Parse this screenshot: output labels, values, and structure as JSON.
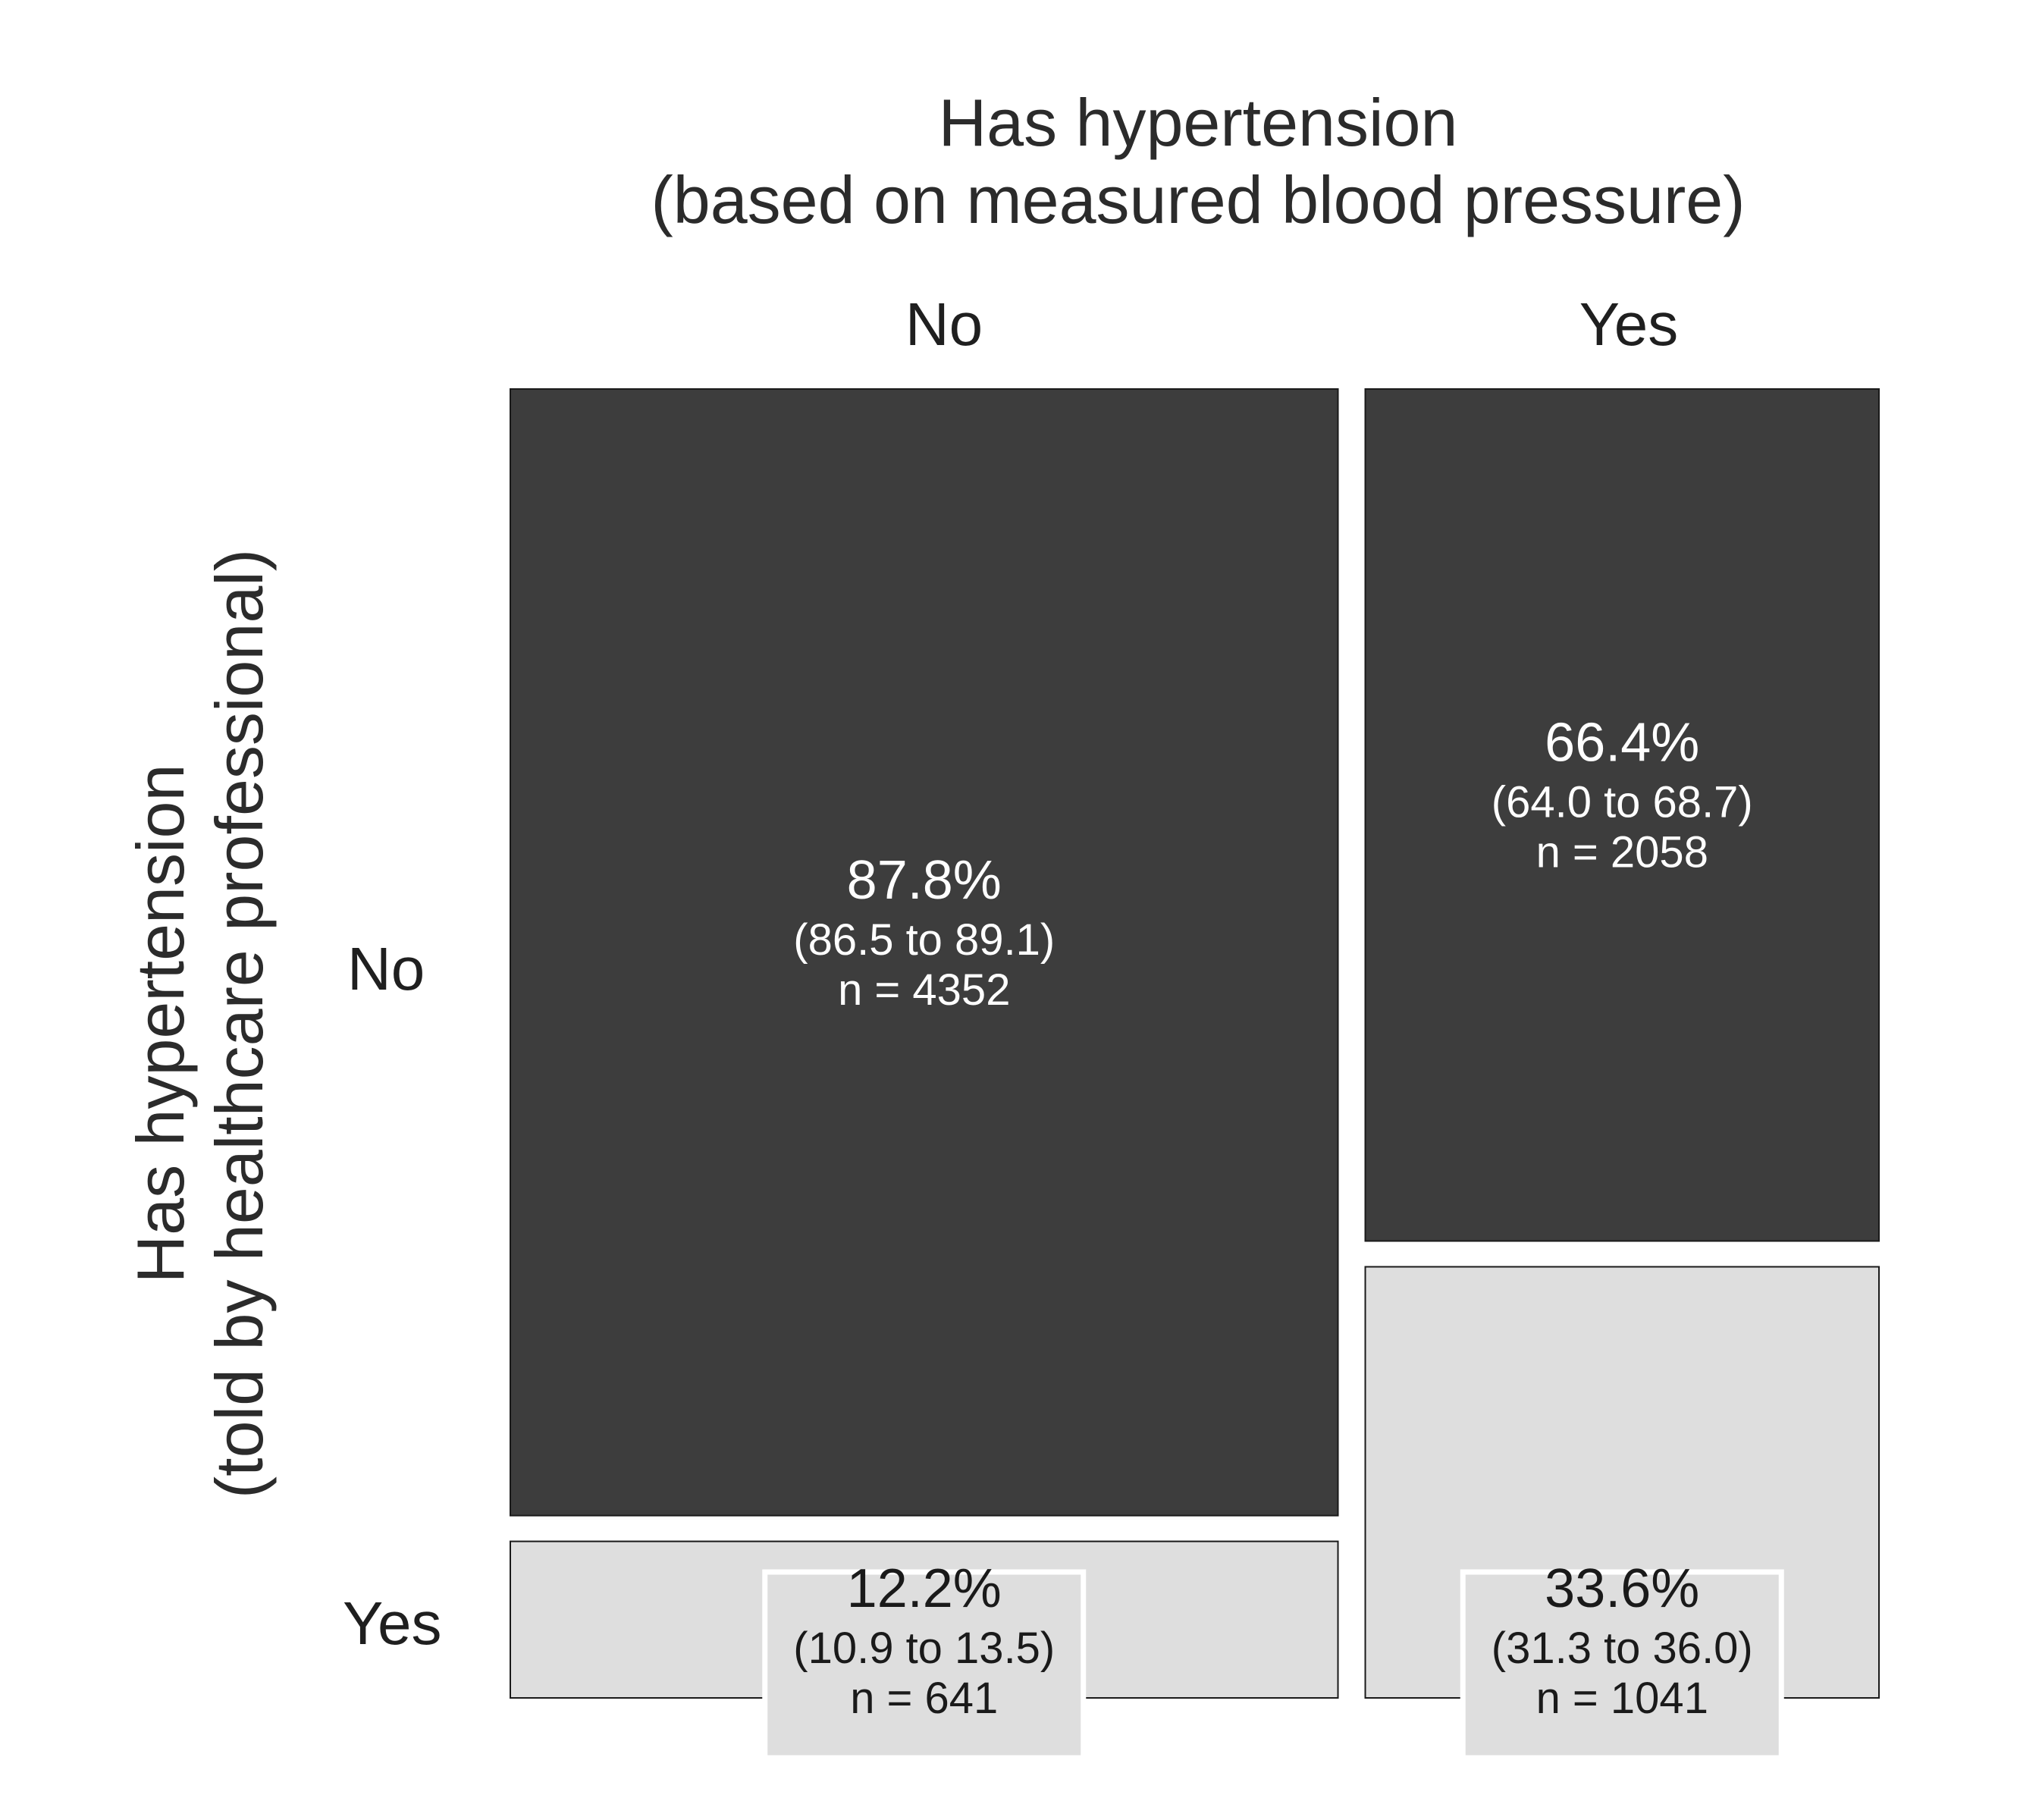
{
  "chart_data": {
    "type": "mosaic",
    "title_lines": [
      "Has hypertension",
      "(based on measured blood pressure)"
    ],
    "ylabel_lines": [
      "Has hypertension",
      "(told by healthcare professional)"
    ],
    "columns": [
      "No",
      "Yes"
    ],
    "rows": [
      "No",
      "Yes"
    ],
    "colors": {
      "No": "#3d3d3d",
      "Yes": "#dedede",
      "label_box": "#dedede",
      "border": "#1a1a1a"
    },
    "cells": [
      {
        "col": "No",
        "row": "No",
        "pct": "87.8%",
        "ci": "(86.5 to 89.1)",
        "n": "n = 4352",
        "count": 4352,
        "share": 87.8
      },
      {
        "col": "No",
        "row": "Yes",
        "pct": "12.2%",
        "ci": "(10.9 to 13.5)",
        "n": "n = 641",
        "count": 641,
        "share": 12.2
      },
      {
        "col": "Yes",
        "row": "No",
        "pct": "66.4%",
        "ci": "(64.0 to 68.7)",
        "n": "n = 2058",
        "count": 2058,
        "share": 66.4
      },
      {
        "col": "Yes",
        "row": "Yes",
        "pct": "33.6%",
        "ci": "(31.3 to 36.0)",
        "n": "n = 1041",
        "count": 1041,
        "share": 33.6
      }
    ]
  }
}
